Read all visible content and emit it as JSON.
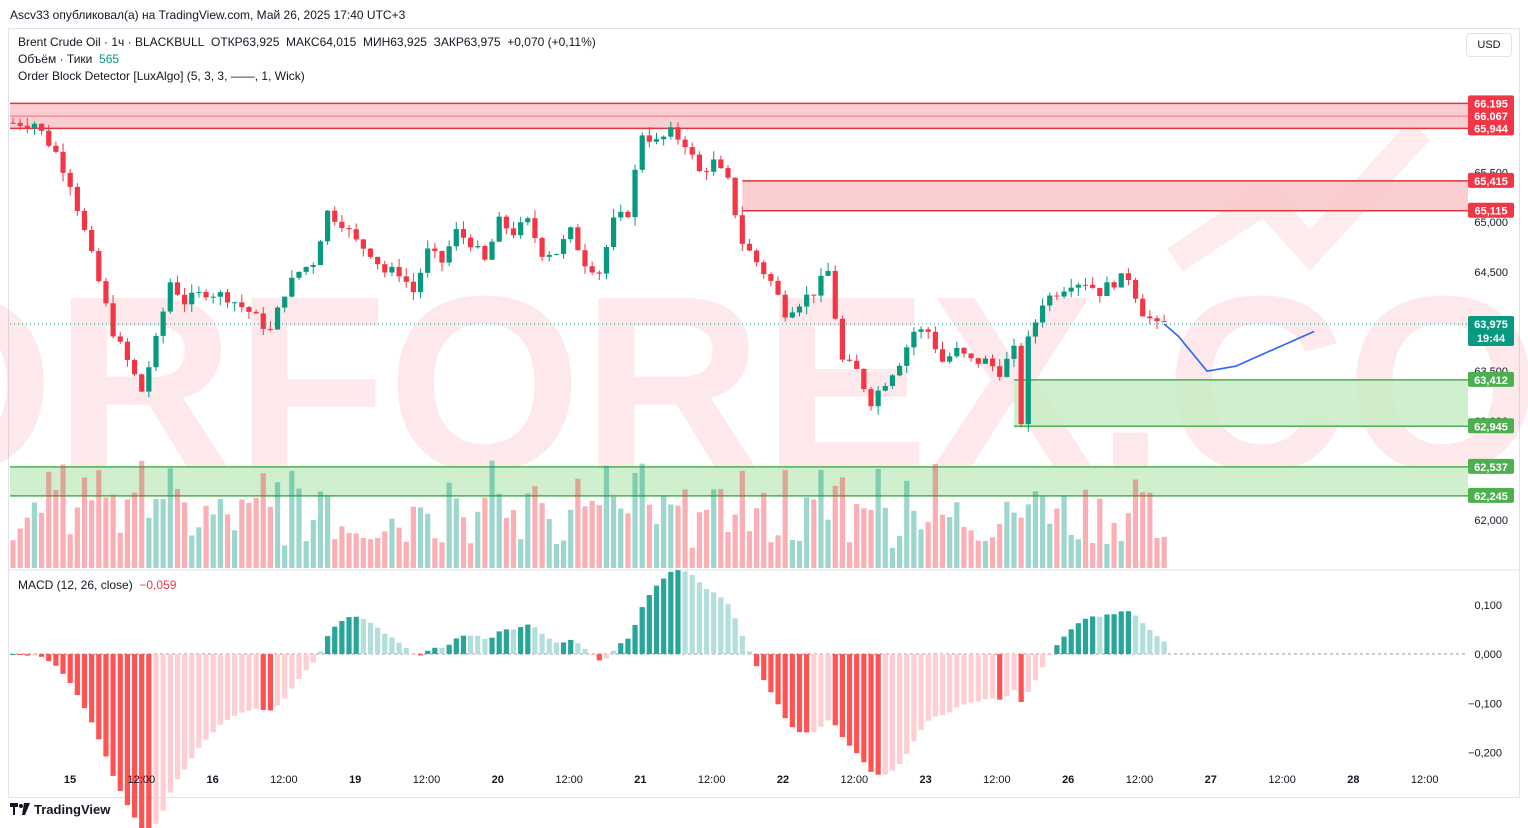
{
  "header": {
    "published": "Ascv33 опубликовал(а) на TradingView.com, Май 26, 2025 17:40 UTC+3",
    "currency_button": "USD"
  },
  "legend": {
    "symbol": "Brent Crude Oil · 1ч · BLACKBULL",
    "open_label": "ОТКР",
    "open": "63,925",
    "high_label": "МАКС",
    "high": "64,015",
    "low_label": "МИН",
    "low": "63,925",
    "close_label": "ЗАКР",
    "close": "63,975",
    "change": "+0,070 (+0,11%)",
    "volume_label": "Объём · Тики",
    "volume_value": "565",
    "indicator": "Order Block Detector [LuxAlgo] (5, 3, 3, ——, 1, Wick)",
    "macd_label": "MACD (12, 26, close)",
    "macd_value": "−0,059"
  },
  "footer": {
    "brand": "TradingView"
  },
  "watermark": "TORFOREX.COM",
  "colors": {
    "up": "#089981",
    "down": "#f23645",
    "bear_zone_fill": "#f9c6c9",
    "bear_zone_line": "#e0363f",
    "bull_zone_fill": "#c8ecc6",
    "bull_zone_line": "#4caf50",
    "forecast": "#2962ff"
  },
  "chart_data": {
    "type": "candlestick",
    "ylim": [
      61.75,
      66.35
    ],
    "y_ticks": [
      {
        "v": 65.5,
        "label": "65,500"
      },
      {
        "v": 65.0,
        "label": "65,000"
      },
      {
        "v": 64.5,
        "label": "64,500"
      },
      {
        "v": 63.5,
        "label": "63,500"
      },
      {
        "v": 63.0,
        "label": "63,000"
      },
      {
        "v": 62.0,
        "label": "62,000"
      }
    ],
    "x_labels": [
      "15",
      "12:00",
      "16",
      "12:00",
      "19",
      "12:00",
      "20",
      "12:00",
      "21",
      "12:00",
      "22",
      "12:00",
      "23",
      "12:00",
      "26",
      "12:00",
      "27",
      "12:00",
      "28",
      "12:00"
    ],
    "price_tags": [
      {
        "v": 66.195,
        "label": "66,195",
        "kind": "bear"
      },
      {
        "v": 66.067,
        "label": "66,067",
        "kind": "bear"
      },
      {
        "v": 65.944,
        "label": "65,944",
        "kind": "bear"
      },
      {
        "v": 65.415,
        "label": "65,415",
        "kind": "bear"
      },
      {
        "v": 65.115,
        "label": "65,115",
        "kind": "bear"
      },
      {
        "v": 63.975,
        "label": "63,975",
        "time": "19:44",
        "kind": "last"
      },
      {
        "v": 63.412,
        "label": "63,412",
        "kind": "bull"
      },
      {
        "v": 62.945,
        "label": "62,945",
        "kind": "bull"
      },
      {
        "v": 62.537,
        "label": "62,537",
        "kind": "bull"
      },
      {
        "v": 62.245,
        "label": "62,245",
        "kind": "bull"
      }
    ],
    "order_blocks": [
      {
        "kind": "bear",
        "top": 66.195,
        "mid": 66.067,
        "bottom": 65.944,
        "start_bar": 0
      },
      {
        "kind": "bear",
        "top": 65.415,
        "bottom": 65.115,
        "start_bar": 102
      },
      {
        "kind": "bull",
        "top": 63.412,
        "bottom": 62.945,
        "start_bar": 140
      },
      {
        "kind": "bull",
        "top": 62.537,
        "bottom": 62.245,
        "start_bar": 0
      }
    ],
    "close_path": [
      [
        0,
        66.0
      ],
      [
        3,
        66.0
      ],
      [
        6,
        65.7
      ],
      [
        8,
        65.4
      ],
      [
        10,
        64.9
      ],
      [
        12,
        64.4
      ],
      [
        14,
        63.9
      ],
      [
        16,
        63.6
      ],
      [
        18,
        63.3
      ],
      [
        20,
        63.8
      ],
      [
        22,
        64.4
      ],
      [
        24,
        64.2
      ],
      [
        27,
        64.3
      ],
      [
        30,
        64.25
      ],
      [
        33,
        64.1
      ],
      [
        36,
        63.9
      ],
      [
        38,
        64.3
      ],
      [
        40,
        64.5
      ],
      [
        42,
        64.6
      ],
      [
        44,
        65.1
      ],
      [
        46,
        65.0
      ],
      [
        48,
        64.8
      ],
      [
        50,
        64.7
      ],
      [
        52,
        64.5
      ],
      [
        54,
        64.5
      ],
      [
        56,
        64.3
      ],
      [
        58,
        64.7
      ],
      [
        60,
        64.6
      ],
      [
        62,
        64.9
      ],
      [
        64,
        64.8
      ],
      [
        66,
        64.6
      ],
      [
        68,
        65.0
      ],
      [
        70,
        64.9
      ],
      [
        72,
        65.0
      ],
      [
        74,
        64.7
      ],
      [
        76,
        64.7
      ],
      [
        78,
        64.9
      ],
      [
        80,
        64.6
      ],
      [
        82,
        64.5
      ],
      [
        84,
        65.0
      ],
      [
        86,
        65.1
      ],
      [
        88,
        65.9
      ],
      [
        90,
        65.8
      ],
      [
        92,
        65.9
      ],
      [
        94,
        65.8
      ],
      [
        96,
        65.5
      ],
      [
        98,
        65.6
      ],
      [
        100,
        65.4
      ],
      [
        102,
        64.8
      ],
      [
        104,
        64.6
      ],
      [
        106,
        64.4
      ],
      [
        108,
        64.1
      ],
      [
        110,
        64.2
      ],
      [
        112,
        64.3
      ],
      [
        114,
        64.5
      ],
      [
        116,
        63.6
      ],
      [
        118,
        63.5
      ],
      [
        120,
        63.2
      ],
      [
        122,
        63.4
      ],
      [
        124,
        63.6
      ],
      [
        126,
        63.9
      ],
      [
        128,
        63.9
      ],
      [
        130,
        63.6
      ],
      [
        132,
        63.7
      ],
      [
        134,
        63.6
      ],
      [
        136,
        63.6
      ],
      [
        138,
        63.5
      ],
      [
        140,
        63.7
      ],
      [
        141,
        63.0
      ],
      [
        142,
        63.8
      ],
      [
        144,
        64.2
      ],
      [
        146,
        64.3
      ],
      [
        148,
        64.4
      ],
      [
        150,
        64.4
      ],
      [
        152,
        64.3
      ],
      [
        154,
        64.4
      ],
      [
        156,
        64.45
      ],
      [
        158,
        64.1
      ],
      [
        160,
        63.95
      ],
      [
        161,
        63.975
      ]
    ],
    "forecast_path": [
      [
        63.975,
        63.975
      ],
      [
        63.85,
        63.85
      ],
      [
        63.5,
        63.5
      ],
      [
        63.55,
        63.55
      ],
      [
        63.9,
        63.9
      ]
    ],
    "macd": {
      "label": "MACD (12, 26, close)",
      "value": "−0,059",
      "ylim": [
        -0.215,
        0.13
      ],
      "y_ticks": [
        {
          "v": 0.1,
          "label": "0,100"
        },
        {
          "v": 0.0,
          "label": "0,000"
        },
        {
          "v": -0.1,
          "label": "−0,100"
        },
        {
          "v": -0.2,
          "label": "−0,200"
        }
      ]
    }
  }
}
